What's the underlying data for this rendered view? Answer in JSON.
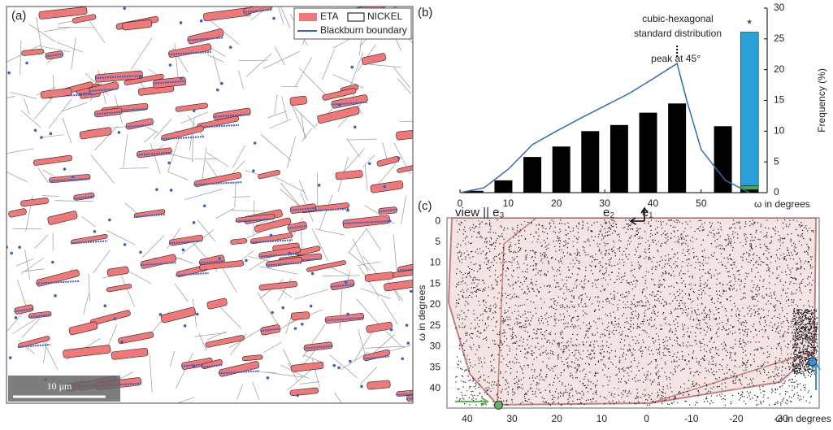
{
  "chart_data": [
    {
      "type": "image",
      "label": "(a)",
      "legend": [
        {
          "name": "ETA",
          "color": "#f07878"
        },
        {
          "name": "NICKEL",
          "color": "#ffffff"
        },
        {
          "name": "Blackburn boundary",
          "color": "#3a5fc8"
        }
      ],
      "scale_bar": "10 μm"
    },
    {
      "type": "bar",
      "label": "(b)",
      "x": [
        3,
        9,
        15,
        21,
        27,
        33,
        39,
        45,
        54.5
      ],
      "values": [
        0.3,
        2,
        5.8,
        7.5,
        10,
        11,
        13,
        14.5,
        10.8
      ],
      "color": "#000000",
      "stack": {
        "x": 60,
        "series": [
          {
            "color": "#000000",
            "value": 0.5
          },
          {
            "color": "#3cb043",
            "value": 0.6
          },
          {
            "color": "#2a9fd8",
            "value": 25
          }
        ]
      },
      "line": {
        "color": "#2f6db5",
        "x": [
          0,
          5,
          10,
          15,
          20,
          25,
          30,
          35,
          40,
          45,
          47,
          50,
          55,
          60
        ],
        "values": [
          0,
          0.8,
          3.8,
          7.8,
          10,
          12.1,
          14.1,
          16.1,
          18.5,
          21,
          15,
          7,
          2,
          0
        ]
      },
      "xlim": [
        0,
        63
      ],
      "xticks": [
        0,
        10,
        20,
        30,
        40,
        50
      ],
      "ylim": [
        0,
        30
      ],
      "yticks": [
        0,
        5,
        10,
        15,
        20,
        25,
        30
      ],
      "xlabel": "ω in degrees",
      "ylabel": "Frequency (%)",
      "annotations": [
        "cubic-hexagonal",
        "standard distribution",
        "peak at 45°",
        "*"
      ]
    },
    {
      "type": "scatter",
      "label": "(c)",
      "title": "view || e₃",
      "axes_labels": [
        "e₂",
        "e₁"
      ],
      "x": [
        33,
        -37
      ],
      "y": [
        44,
        33.6
      ],
      "colors": [
        "#5cb85c",
        "#3a8fd8"
      ],
      "xlim": [
        44.5,
        -38.5
      ],
      "xticks": [
        40,
        30,
        20,
        10,
        0,
        -10,
        -20,
        -30
      ],
      "ylim": [
        -0.8,
        44.7
      ],
      "yticks": [
        0,
        5,
        10,
        15,
        20,
        25,
        30,
        35,
        40
      ],
      "xlabel": "ω in degrees",
      "ylabel": "ω in degrees"
    }
  ]
}
